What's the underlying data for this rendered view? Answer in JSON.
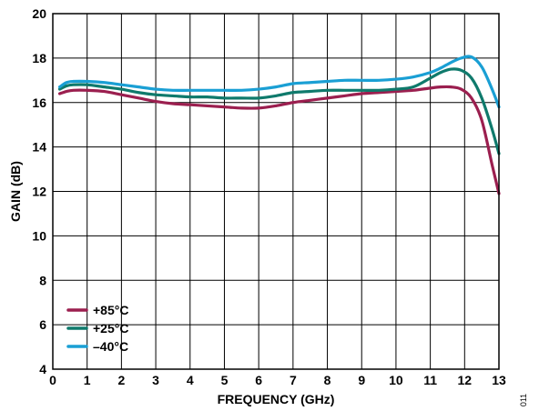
{
  "figure_code": "011",
  "chart_data": {
    "type": "line",
    "title": "",
    "xlabel": "FREQUENCY (GHz)",
    "ylabel": "GAIN (dB)",
    "xlim": [
      0,
      13
    ],
    "ylim": [
      4,
      20
    ],
    "xticks": [
      0,
      1,
      2,
      3,
      4,
      5,
      6,
      7,
      8,
      9,
      10,
      11,
      12,
      13
    ],
    "yticks": [
      4,
      6,
      8,
      10,
      12,
      14,
      16,
      18,
      20
    ],
    "grid": true,
    "legend_position": "bottom-left",
    "series": [
      {
        "name": "+85°C",
        "color": "#9b1f4f",
        "x": [
          0.2,
          0.4,
          0.6,
          1.0,
          1.5,
          2.0,
          2.5,
          3.0,
          3.5,
          4.0,
          4.5,
          5.0,
          5.5,
          6.0,
          6.5,
          7.0,
          7.5,
          8.0,
          8.5,
          9.0,
          9.5,
          10.0,
          10.5,
          11.0,
          11.3,
          11.6,
          11.9,
          12.2,
          12.5,
          12.8,
          13.0
        ],
        "y": [
          16.4,
          16.5,
          16.55,
          16.55,
          16.5,
          16.35,
          16.2,
          16.05,
          15.95,
          15.9,
          15.85,
          15.8,
          15.75,
          15.75,
          15.85,
          16.0,
          16.1,
          16.2,
          16.3,
          16.4,
          16.45,
          16.5,
          16.55,
          16.65,
          16.7,
          16.7,
          16.6,
          16.2,
          15.2,
          13.2,
          11.9
        ]
      },
      {
        "name": "+25°C",
        "color": "#0f7a6c",
        "x": [
          0.2,
          0.4,
          0.6,
          1.0,
          1.5,
          2.0,
          2.5,
          3.0,
          3.5,
          4.0,
          4.5,
          5.0,
          5.5,
          6.0,
          6.5,
          7.0,
          7.5,
          8.0,
          8.5,
          9.0,
          9.5,
          10.0,
          10.5,
          11.0,
          11.3,
          11.6,
          11.9,
          12.2,
          12.5,
          12.8,
          13.0
        ],
        "y": [
          16.6,
          16.75,
          16.8,
          16.8,
          16.7,
          16.6,
          16.45,
          16.35,
          16.3,
          16.25,
          16.25,
          16.2,
          16.2,
          16.2,
          16.3,
          16.45,
          16.5,
          16.55,
          16.55,
          16.55,
          16.55,
          16.6,
          16.7,
          17.1,
          17.35,
          17.5,
          17.45,
          17.1,
          16.2,
          14.8,
          13.7
        ]
      },
      {
        "name": "–40°C",
        "color": "#1a9fd4",
        "x": [
          0.2,
          0.4,
          0.6,
          1.0,
          1.5,
          2.0,
          2.5,
          3.0,
          3.5,
          4.0,
          4.5,
          5.0,
          5.5,
          6.0,
          6.5,
          7.0,
          7.5,
          8.0,
          8.5,
          9.0,
          9.5,
          10.0,
          10.5,
          11.0,
          11.3,
          11.6,
          11.9,
          12.2,
          12.5,
          12.8,
          13.0
        ],
        "y": [
          16.7,
          16.9,
          16.95,
          16.95,
          16.9,
          16.8,
          16.7,
          16.6,
          16.55,
          16.55,
          16.55,
          16.55,
          16.55,
          16.6,
          16.7,
          16.85,
          16.9,
          16.95,
          17.0,
          17.0,
          17.0,
          17.05,
          17.15,
          17.35,
          17.55,
          17.8,
          18.0,
          18.05,
          17.6,
          16.6,
          15.8
        ]
      }
    ]
  }
}
